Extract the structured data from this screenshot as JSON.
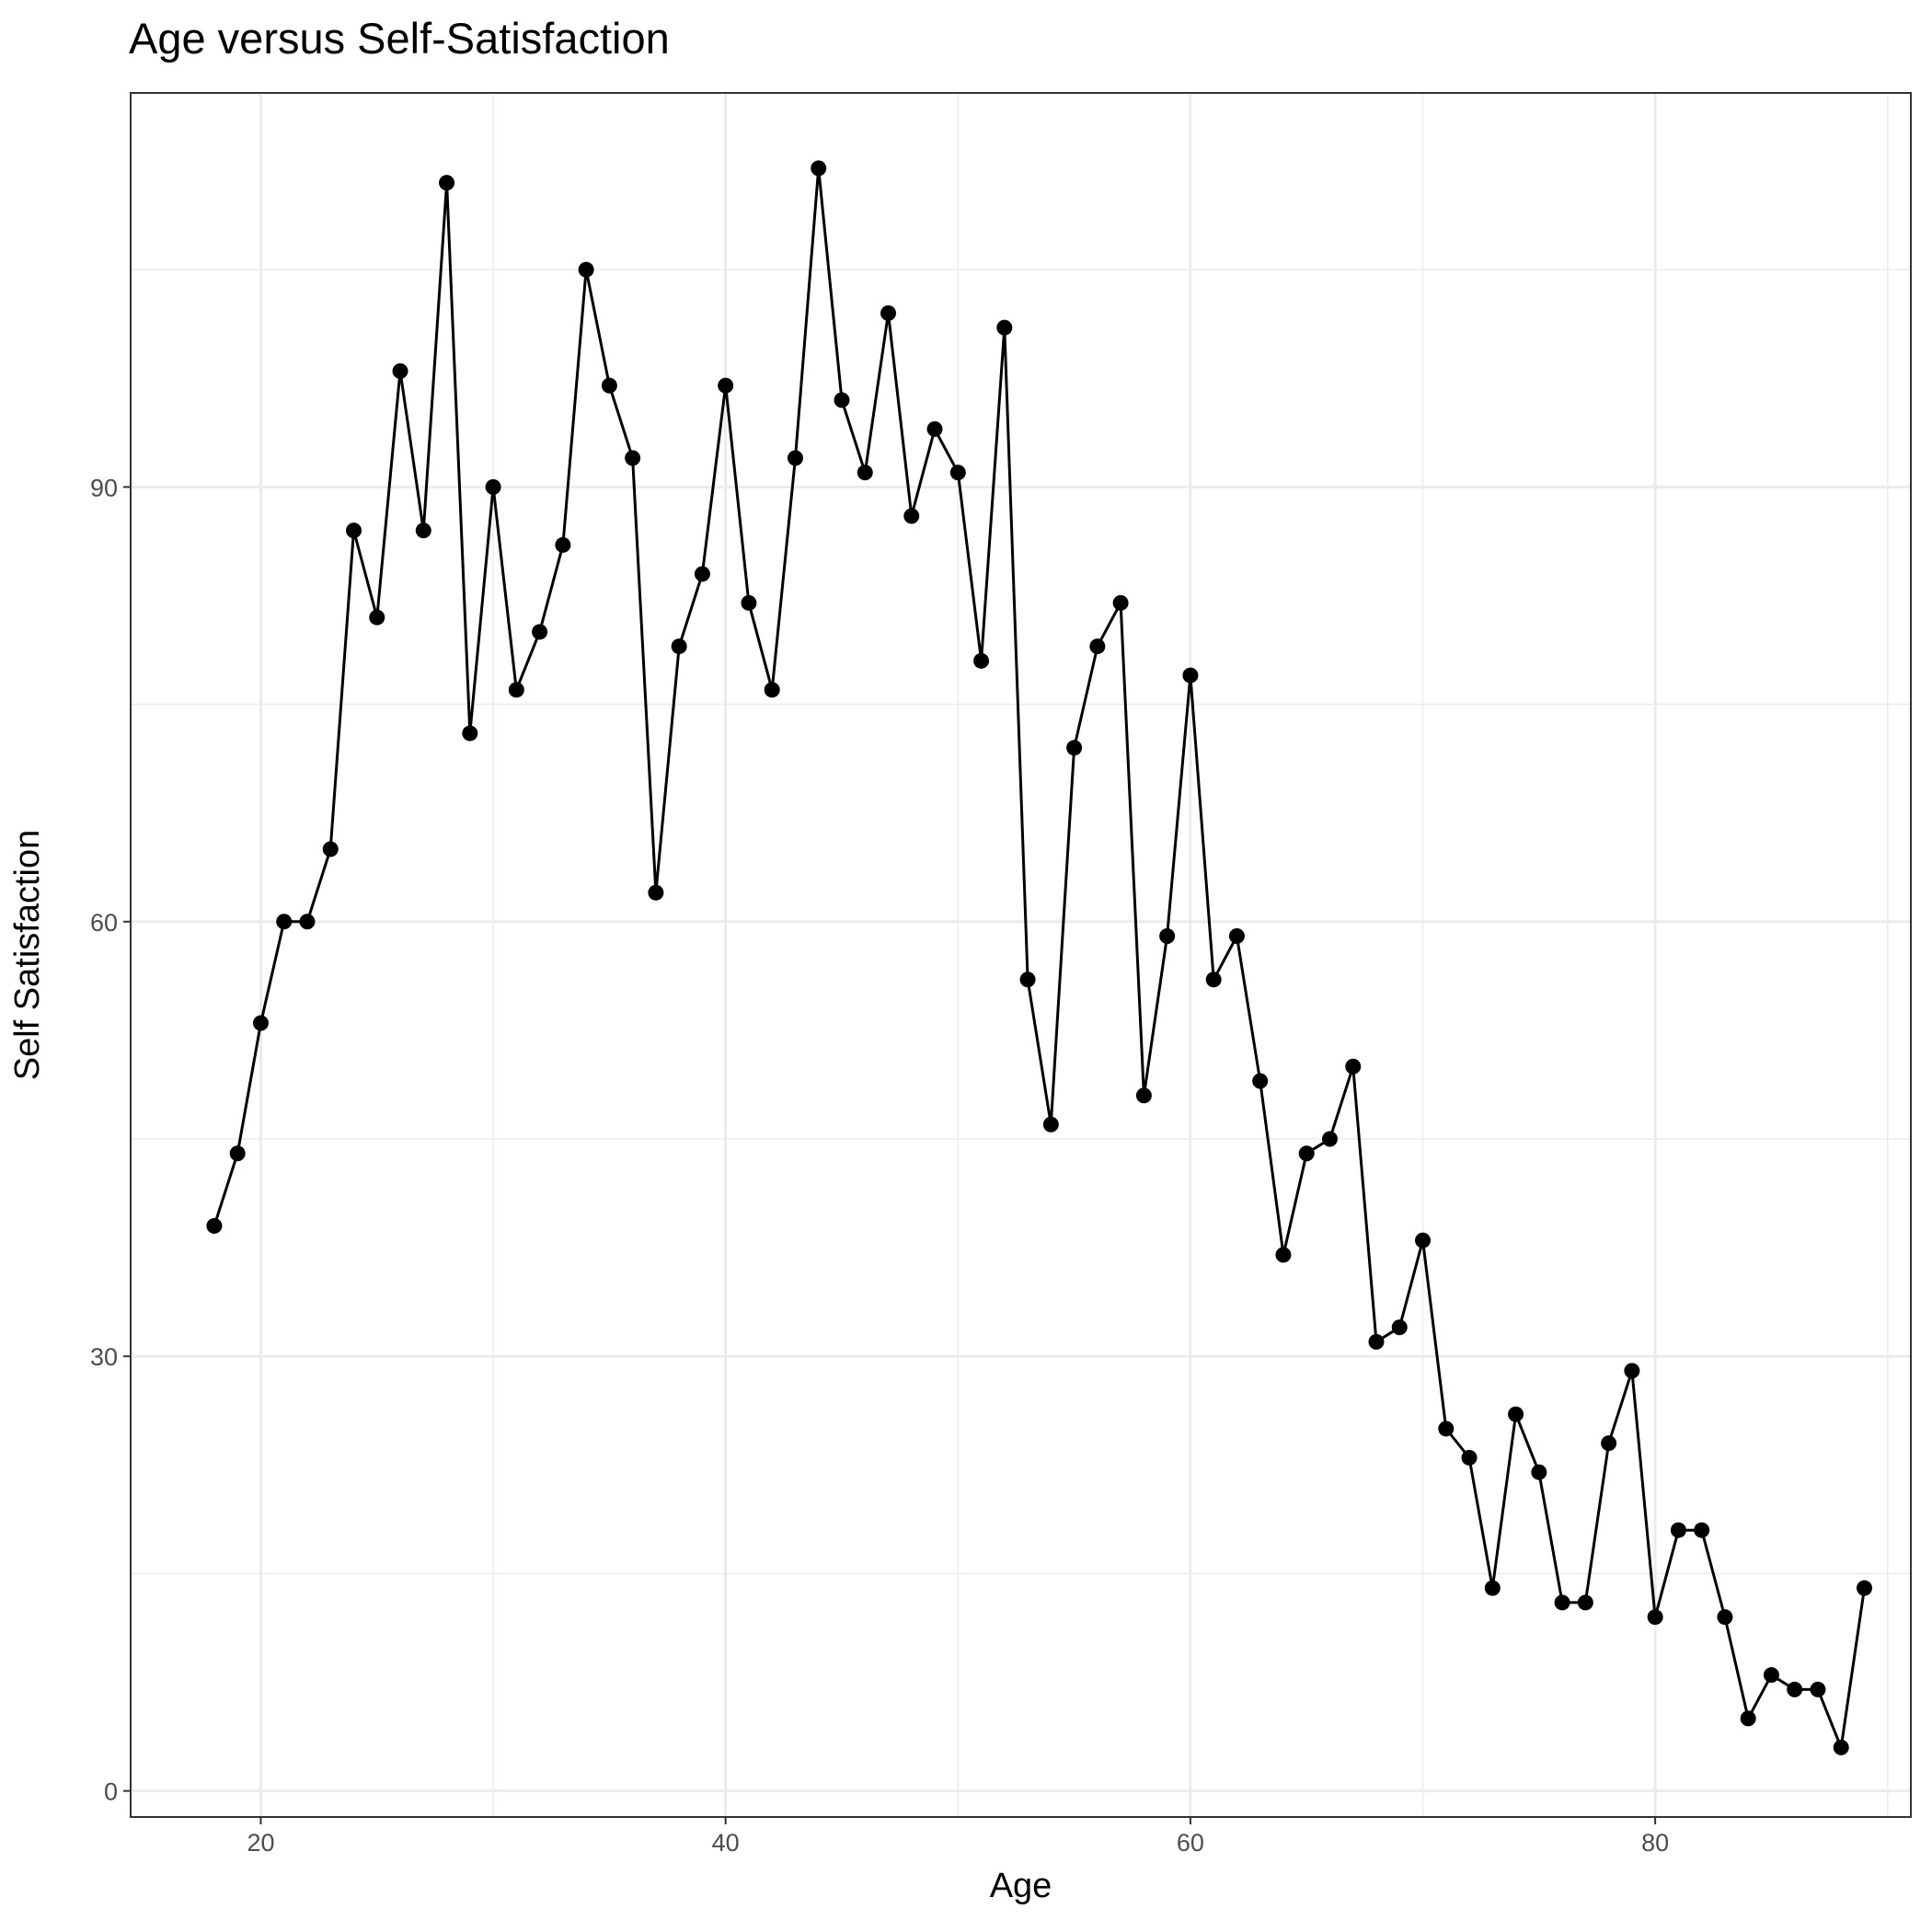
{
  "chart_data": {
    "type": "line",
    "title": "Age versus Self-Satisfaction",
    "xlabel": "Age",
    "ylabel": "Self Satisfaction",
    "xlim": [
      14.4,
      91.0
    ],
    "ylim": [
      -1.8,
      117.2
    ],
    "x_ticks": [
      20,
      40,
      60,
      80
    ],
    "y_ticks": [
      0,
      30,
      60,
      90
    ],
    "x_minor_grid": [
      30,
      50,
      70,
      90
    ],
    "y_minor_grid": [
      15,
      45,
      75,
      105
    ],
    "grid": true,
    "legend": "none",
    "colors": {
      "line": "#000000",
      "point": "#000000",
      "grid": "#ebebeb",
      "panel_border": "#333333"
    },
    "series": [
      {
        "x": [
          18,
          19,
          20,
          21,
          22,
          23,
          24,
          25,
          26,
          27,
          28,
          29,
          30,
          31,
          32,
          33,
          34,
          35,
          36,
          37,
          38,
          39,
          40,
          41,
          42,
          43,
          44,
          45,
          46,
          47,
          48,
          49,
          50,
          51,
          52,
          53,
          54,
          55,
          56,
          57,
          58,
          59,
          60,
          61,
          62,
          63,
          64,
          65,
          66,
          67,
          68,
          69,
          70,
          71,
          72,
          73,
          74,
          75,
          76,
          77,
          78,
          79,
          80,
          81,
          82,
          83,
          84,
          85,
          86,
          87,
          88,
          89
        ],
        "y": [
          39,
          44,
          53,
          60,
          60,
          65,
          87,
          81,
          98,
          87,
          111,
          73,
          90,
          76,
          80,
          86,
          105,
          97,
          92,
          62,
          79,
          84,
          97,
          82,
          76,
          92,
          112,
          96,
          91,
          102,
          88,
          94,
          91,
          78,
          101,
          56,
          46,
          72,
          79,
          82,
          48,
          59,
          77,
          56,
          59,
          49,
          37,
          44,
          45,
          50,
          31,
          32,
          38,
          25,
          23,
          14,
          26,
          22,
          13,
          13,
          24,
          29,
          12,
          18,
          18,
          12,
          5,
          8,
          7,
          7,
          3,
          14
        ]
      }
    ]
  }
}
